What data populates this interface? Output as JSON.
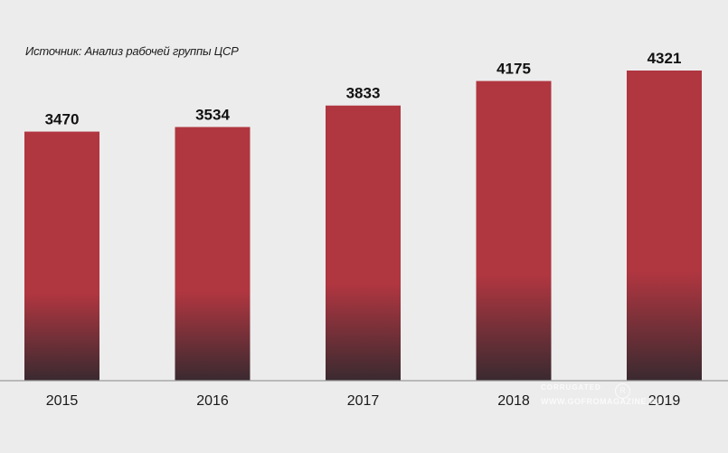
{
  "source_note": "Источник: Анализ рабочей группы ЦСР",
  "watermark": {
    "line1": "CORRUGATED",
    "line2": "WWW.GOFROMAGAZINE.RU",
    "mark": "R"
  },
  "colors": {
    "bar_top": "#b03640",
    "bar_bottom": "#3a2a30",
    "background": "#ececec",
    "baseline": "#9a9a9a"
  },
  "chart_data": {
    "type": "bar",
    "title": "",
    "xlabel": "",
    "ylabel": "",
    "categories": [
      "2015",
      "2016",
      "2017",
      "2018",
      "2019"
    ],
    "values": [
      3470,
      3534,
      3833,
      4175,
      4321
    ],
    "value_labels": [
      "3470",
      "3534",
      "3833",
      "4175",
      "4321"
    ],
    "ylim": [
      0,
      4321
    ],
    "grid": false,
    "legend": "none"
  }
}
